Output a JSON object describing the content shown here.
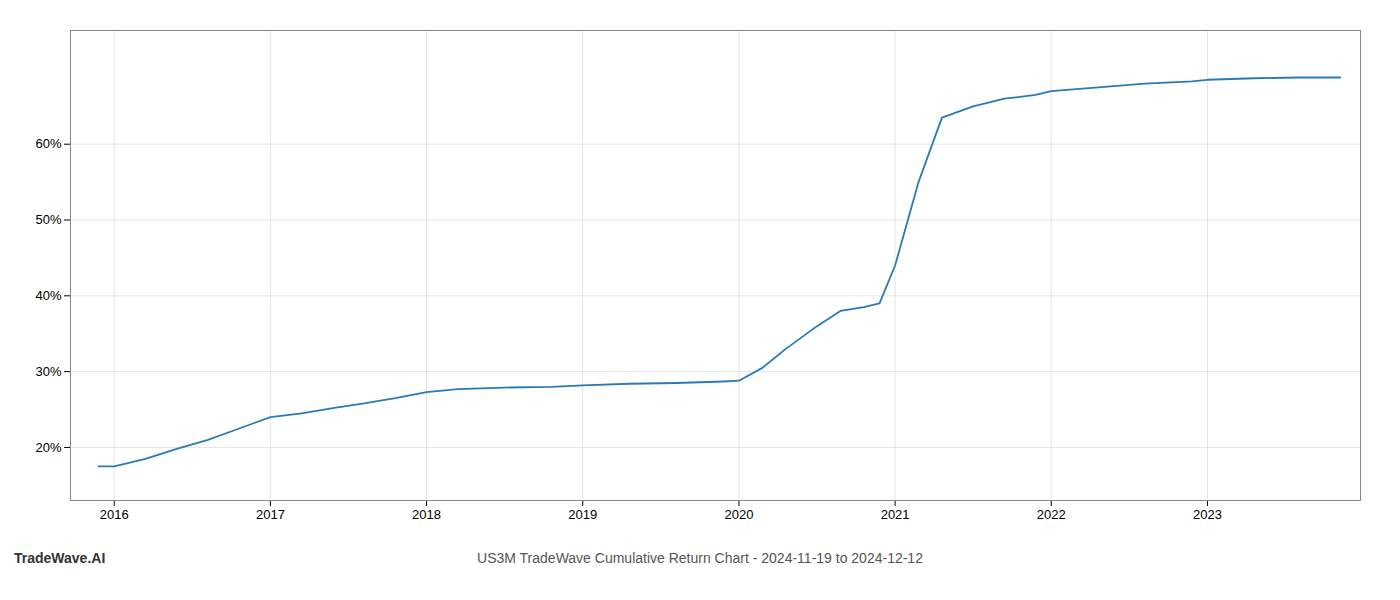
{
  "chart_data": {
    "type": "line",
    "title": "US3M TradeWave Cumulative Return Chart - 2024-11-19 to 2024-12-12",
    "annotations": [
      "TradeWave.AI"
    ],
    "x": [
      2015.9,
      2016.0,
      2016.2,
      2016.4,
      2016.6,
      2016.8,
      2017.0,
      2017.2,
      2017.4,
      2017.6,
      2017.8,
      2018.0,
      2018.2,
      2018.5,
      2018.8,
      2019.0,
      2019.3,
      2019.6,
      2019.9,
      2020.0,
      2020.15,
      2020.3,
      2020.5,
      2020.65,
      2020.8,
      2020.9,
      2021.0,
      2021.15,
      2021.3,
      2021.5,
      2021.7,
      2021.9,
      2022.0,
      2022.3,
      2022.6,
      2022.9,
      2023.0,
      2023.3,
      2023.6,
      2023.85
    ],
    "values": [
      17.5,
      17.5,
      18.5,
      19.8,
      21.0,
      22.5,
      24.0,
      24.5,
      25.2,
      25.8,
      26.5,
      27.3,
      27.7,
      27.9,
      28.0,
      28.2,
      28.4,
      28.5,
      28.7,
      28.8,
      30.5,
      33.0,
      36.0,
      38.0,
      38.5,
      39.0,
      44.0,
      55.0,
      63.5,
      65.0,
      66.0,
      66.5,
      67.0,
      67.5,
      68.0,
      68.3,
      68.5,
      68.7,
      68.8,
      68.8
    ],
    "color": "#2a7ab5",
    "xlim": [
      2015.72,
      2023.98
    ],
    "xticks": [
      2016,
      2017,
      2018,
      2019,
      2020,
      2021,
      2022,
      2023
    ],
    "ylim": [
      13,
      75
    ],
    "yticks": [
      {
        "value": 20,
        "label": "20%"
      },
      {
        "value": 30,
        "label": "30%"
      },
      {
        "value": 40,
        "label": "40%"
      },
      {
        "value": 50,
        "label": "50%"
      },
      {
        "value": 60,
        "label": "60%"
      }
    ],
    "grid": true
  }
}
